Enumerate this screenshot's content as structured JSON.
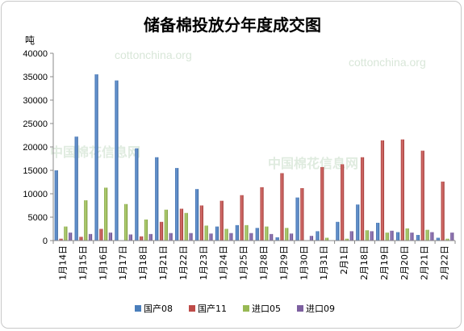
{
  "chart_data": {
    "type": "bar",
    "title": "储备棉投放分年度成交图",
    "ylabel": "吨",
    "xlabel": "",
    "ylim": [
      0,
      40000
    ],
    "yticks": [
      0,
      5000,
      10000,
      15000,
      20000,
      25000,
      30000,
      35000,
      40000
    ],
    "grid": false,
    "legend_position": "bottom",
    "categories": [
      "1月14日",
      "1月15日",
      "1月16日",
      "1月17日",
      "1月18日",
      "1月21日",
      "1月22日",
      "1月23日",
      "1月24日",
      "1月25日",
      "1月28日",
      "1月29日",
      "1月30日",
      "1月31日",
      "2月1日",
      "2月18日",
      "2月19日",
      "2月20日",
      "2月21日",
      "2月22日"
    ],
    "series": [
      {
        "name": "国产08",
        "color": "#4a7ebb",
        "values": [
          15000,
          22200,
          35500,
          34200,
          19700,
          17800,
          15500,
          11000,
          3000,
          3300,
          2700,
          700,
          9200,
          2000,
          4000,
          7700,
          3800,
          1800,
          1200,
          600
        ]
      },
      {
        "name": "国产11",
        "color": "#be4b48",
        "values": [
          400,
          800,
          2500,
          0,
          900,
          4000,
          6800,
          7500,
          8500,
          9700,
          11400,
          14400,
          11200,
          15700,
          16300,
          17800,
          21400,
          21600,
          19200,
          12600
        ]
      },
      {
        "name": "进口05",
        "color": "#98b954",
        "values": [
          3000,
          8600,
          11300,
          7800,
          4500,
          6600,
          5900,
          3200,
          2500,
          3300,
          3000,
          2700,
          0,
          600,
          400,
          2200,
          1700,
          2600,
          2300,
          400
        ]
      },
      {
        "name": "进口09",
        "color": "#7d60a0",
        "values": [
          1700,
          1400,
          1700,
          1300,
          1400,
          1600,
          1600,
          1500,
          1600,
          1600,
          1400,
          1500,
          1000,
          0,
          2000,
          2000,
          2100,
          1700,
          1800,
          1700
        ]
      }
    ]
  },
  "watermarks": [
    "cottonchina.org",
    "cottonchina.org",
    "中国棉花信息网",
    "中国棉花信息网"
  ]
}
